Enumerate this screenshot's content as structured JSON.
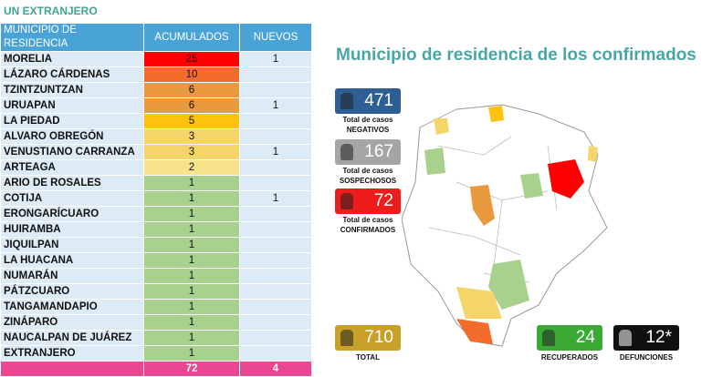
{
  "header": {
    "title": "UN EXTRANJERO"
  },
  "table": {
    "columns": [
      "MUNICIPIO DE RESIDENCIA",
      "ACUMULADOS",
      "NUEVOS"
    ],
    "rows": [
      {
        "name": "MORELIA",
        "acumulados": "25",
        "nuevos": "1",
        "color": "#ff0000"
      },
      {
        "name": "LÁZARO CÁRDENAS",
        "acumulados": "10",
        "nuevos": null,
        "color": "#f36c2c"
      },
      {
        "name": "TZINTZUNTZAN",
        "acumulados": "6",
        "nuevos": null,
        "color": "#ea9a3e"
      },
      {
        "name": "URUAPAN",
        "acumulados": "6",
        "nuevos": "1",
        "color": "#ea9a3e"
      },
      {
        "name": "LA PIEDAD",
        "acumulados": "5",
        "nuevos": null,
        "color": "#ffc20e"
      },
      {
        "name": "ALVARO OBREGÓN",
        "acumulados": "3",
        "nuevos": null,
        "color": "#f5d56a"
      },
      {
        "name": "VENUSTIANO CARRANZA",
        "acumulados": "3",
        "nuevos": "1",
        "color": "#f5d56a"
      },
      {
        "name": "ARTEAGA",
        "acumulados": "2",
        "nuevos": null,
        "color": "#f8e38d"
      },
      {
        "name": "ARIO DE ROSALES",
        "acumulados": "1",
        "nuevos": null,
        "color": "#a9d18e"
      },
      {
        "name": "COTIJA",
        "acumulados": "1",
        "nuevos": "1",
        "color": "#a9d18e"
      },
      {
        "name": "ERONGARÍCUARO",
        "acumulados": "1",
        "nuevos": null,
        "color": "#a9d18e"
      },
      {
        "name": "HUIRAMBA",
        "acumulados": "1",
        "nuevos": null,
        "color": "#a9d18e"
      },
      {
        "name": "JIQUILPAN",
        "acumulados": "1",
        "nuevos": null,
        "color": "#a9d18e"
      },
      {
        "name": "LA HUACANA",
        "acumulados": "1",
        "nuevos": null,
        "color": "#a9d18e"
      },
      {
        "name": "NUMARÁN",
        "acumulados": "1",
        "nuevos": null,
        "color": "#a9d18e"
      },
      {
        "name": "PÁTZCUARO",
        "acumulados": "1",
        "nuevos": null,
        "color": "#a9d18e"
      },
      {
        "name": "TANGAMANDAPIO",
        "acumulados": "1",
        "nuevos": null,
        "color": "#a9d18e"
      },
      {
        "name": "ZINÁPARO",
        "acumulados": "1",
        "nuevos": null,
        "color": "#a9d18e"
      },
      {
        "name": "NAUCALPAN DE JUÁREZ",
        "acumulados": "1",
        "nuevos": null,
        "color": "#a9d18e"
      },
      {
        "name": "EXTRANJERO",
        "acumulados": "1",
        "nuevos": null,
        "color": "#a9d18e"
      }
    ],
    "totals": {
      "acumulados": "72",
      "nuevos": "4"
    }
  },
  "map": {
    "title": "Municipio de residencia de los confirmados",
    "stats": {
      "negativos": {
        "value": "471",
        "label_1": "Total de casos",
        "label_2": "NEGATIVOS"
      },
      "sospechosos": {
        "value": "167",
        "label_1": "Total de casos",
        "label_2": "SOSPECHOSOS"
      },
      "confirmados": {
        "value": "72",
        "label_1": "Total de casos",
        "label_2": "CONFIRMADOS"
      },
      "total": {
        "value": "710",
        "label": "TOTAL"
      },
      "recuperados": {
        "value": "24",
        "label": "RECUPERADOS"
      },
      "defunciones": {
        "value": "12*",
        "label": "DEFUNCIONES"
      }
    }
  }
}
